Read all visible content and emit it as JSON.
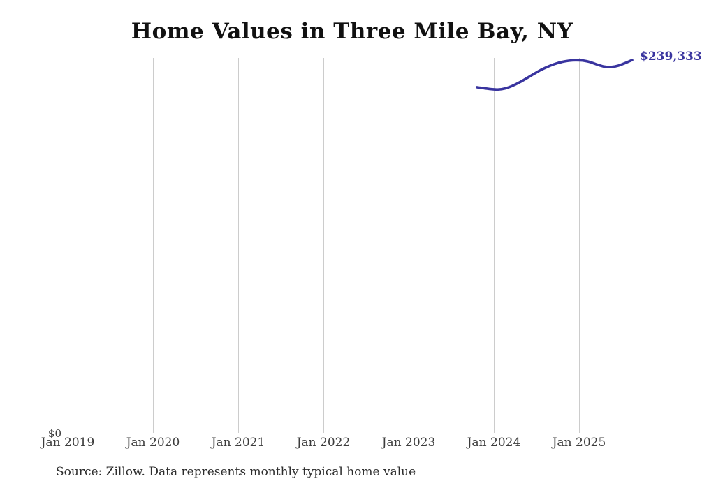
{
  "header": {
    "title": "Home Values in Three Mile Bay, NY"
  },
  "footer": {
    "source_note": "Source: Zillow. Data represents monthly typical home value"
  },
  "colors": {
    "line": "#39349f",
    "grid": "#cccccc",
    "title_text": "#111111",
    "tick_text": "#3c3c3c"
  },
  "chart_data": {
    "type": "line",
    "title": "Home Values in Three Mile Bay, NY",
    "xlabel": "",
    "ylabel": "",
    "x_tick_labels": [
      "Jan 2019",
      "Jan 2020",
      "Jan 2021",
      "Jan 2022",
      "Jan 2023",
      "Jan 2024",
      "Jan 2025"
    ],
    "y_tick_labels": [
      "$0"
    ],
    "y_zero_label": "$0",
    "end_label": "$239,333",
    "ylim": [
      0,
      250000
    ],
    "grid": "vertical-only",
    "legend": "none",
    "line_color": "#39349f",
    "grid_color": "#cccccc",
    "series": [
      {
        "name": "Monthly typical home value",
        "months": [
          "Nov 2023",
          "Dec 2023",
          "Jan 2024",
          "Feb 2024",
          "Mar 2024",
          "Apr 2024",
          "May 2024",
          "Jun 2024",
          "Jul 2024",
          "Aug 2024",
          "Sep 2024",
          "Oct 2024",
          "Nov 2024",
          "Dec 2024",
          "Jan 2025",
          "Feb 2025",
          "Mar 2025",
          "Apr 2025",
          "May 2025",
          "Jun 2025",
          "Jul 2025",
          "Aug 2025",
          "Sep 2025"
        ],
        "values": [
          221900,
          221300,
          220700,
          220500,
          221200,
          222800,
          225000,
          227600,
          230300,
          232900,
          235000,
          236800,
          238100,
          238900,
          239200,
          239000,
          238100,
          236500,
          235200,
          234900,
          235700,
          237400,
          239333
        ]
      }
    ]
  }
}
